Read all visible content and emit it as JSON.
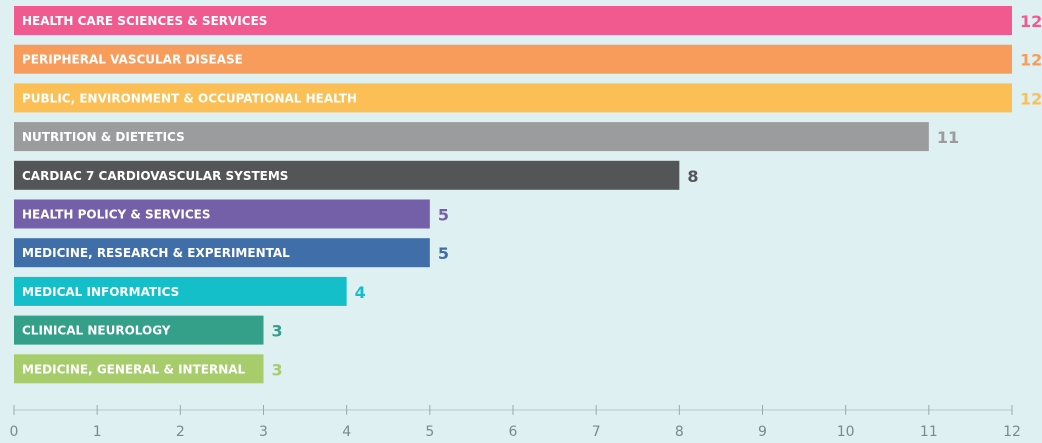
{
  "chart_data": {
    "type": "bar",
    "orientation": "horizontal",
    "categories": [
      "HEALTH CARE SCIENCES & SERVICES",
      "PERIPHERAL VASCULAR DISEASE",
      "PUBLIC, ENVIRONMENT & OCCUPATIONAL HEALTH",
      "NUTRITION & DIETETICS",
      "CARDIAC 7 CARDIOVASCULAR SYSTEMS",
      "HEALTH POLICY & SERVICES",
      "MEDICINE, RESEARCH & EXPERIMENTAL",
      "MEDICAL INFORMATICS",
      "CLINICAL NEUROLOGY",
      "MEDICINE, GENERAL & INTERNAL"
    ],
    "values": [
      12,
      12,
      12,
      11,
      8,
      5,
      5,
      4,
      3,
      3
    ],
    "colors": [
      "#f05a8e",
      "#f89c5c",
      "#fcbf55",
      "#9b9c9e",
      "#545557",
      "#7460a8",
      "#406ea8",
      "#14bfca",
      "#34a08a",
      "#a7cc6c"
    ],
    "xlim": [
      0,
      12
    ],
    "xticks": [
      0,
      1,
      2,
      3,
      4,
      5,
      6,
      7,
      8,
      9,
      10,
      11,
      12
    ]
  }
}
